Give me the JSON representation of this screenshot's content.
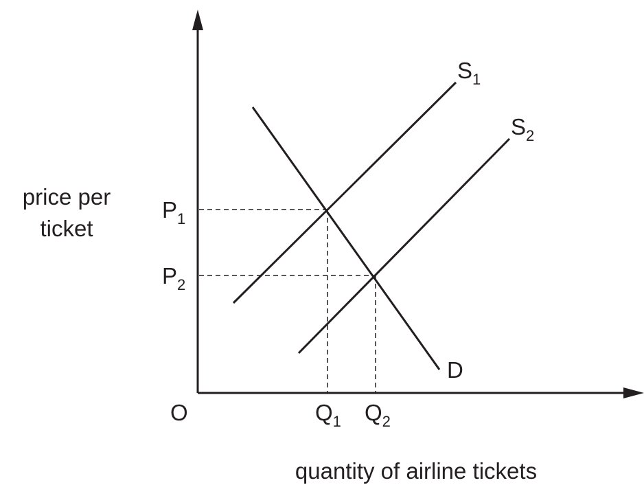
{
  "axes": {
    "y_title_line1": "price per",
    "y_title_line2": "ticket",
    "x_title": "quantity of airline tickets",
    "origin": "O"
  },
  "curves": {
    "supply_1": {
      "main": "S",
      "sub": "1"
    },
    "supply_2": {
      "main": "S",
      "sub": "2"
    },
    "demand": {
      "main": "D"
    }
  },
  "prices": {
    "p1": {
      "main": "P",
      "sub": "1"
    },
    "p2": {
      "main": "P",
      "sub": "2"
    }
  },
  "quantities": {
    "q1": {
      "main": "Q",
      "sub": "1"
    },
    "q2": {
      "main": "Q",
      "sub": "2"
    }
  },
  "colors": {
    "ink": "#231f20",
    "background": "#ffffff"
  }
}
